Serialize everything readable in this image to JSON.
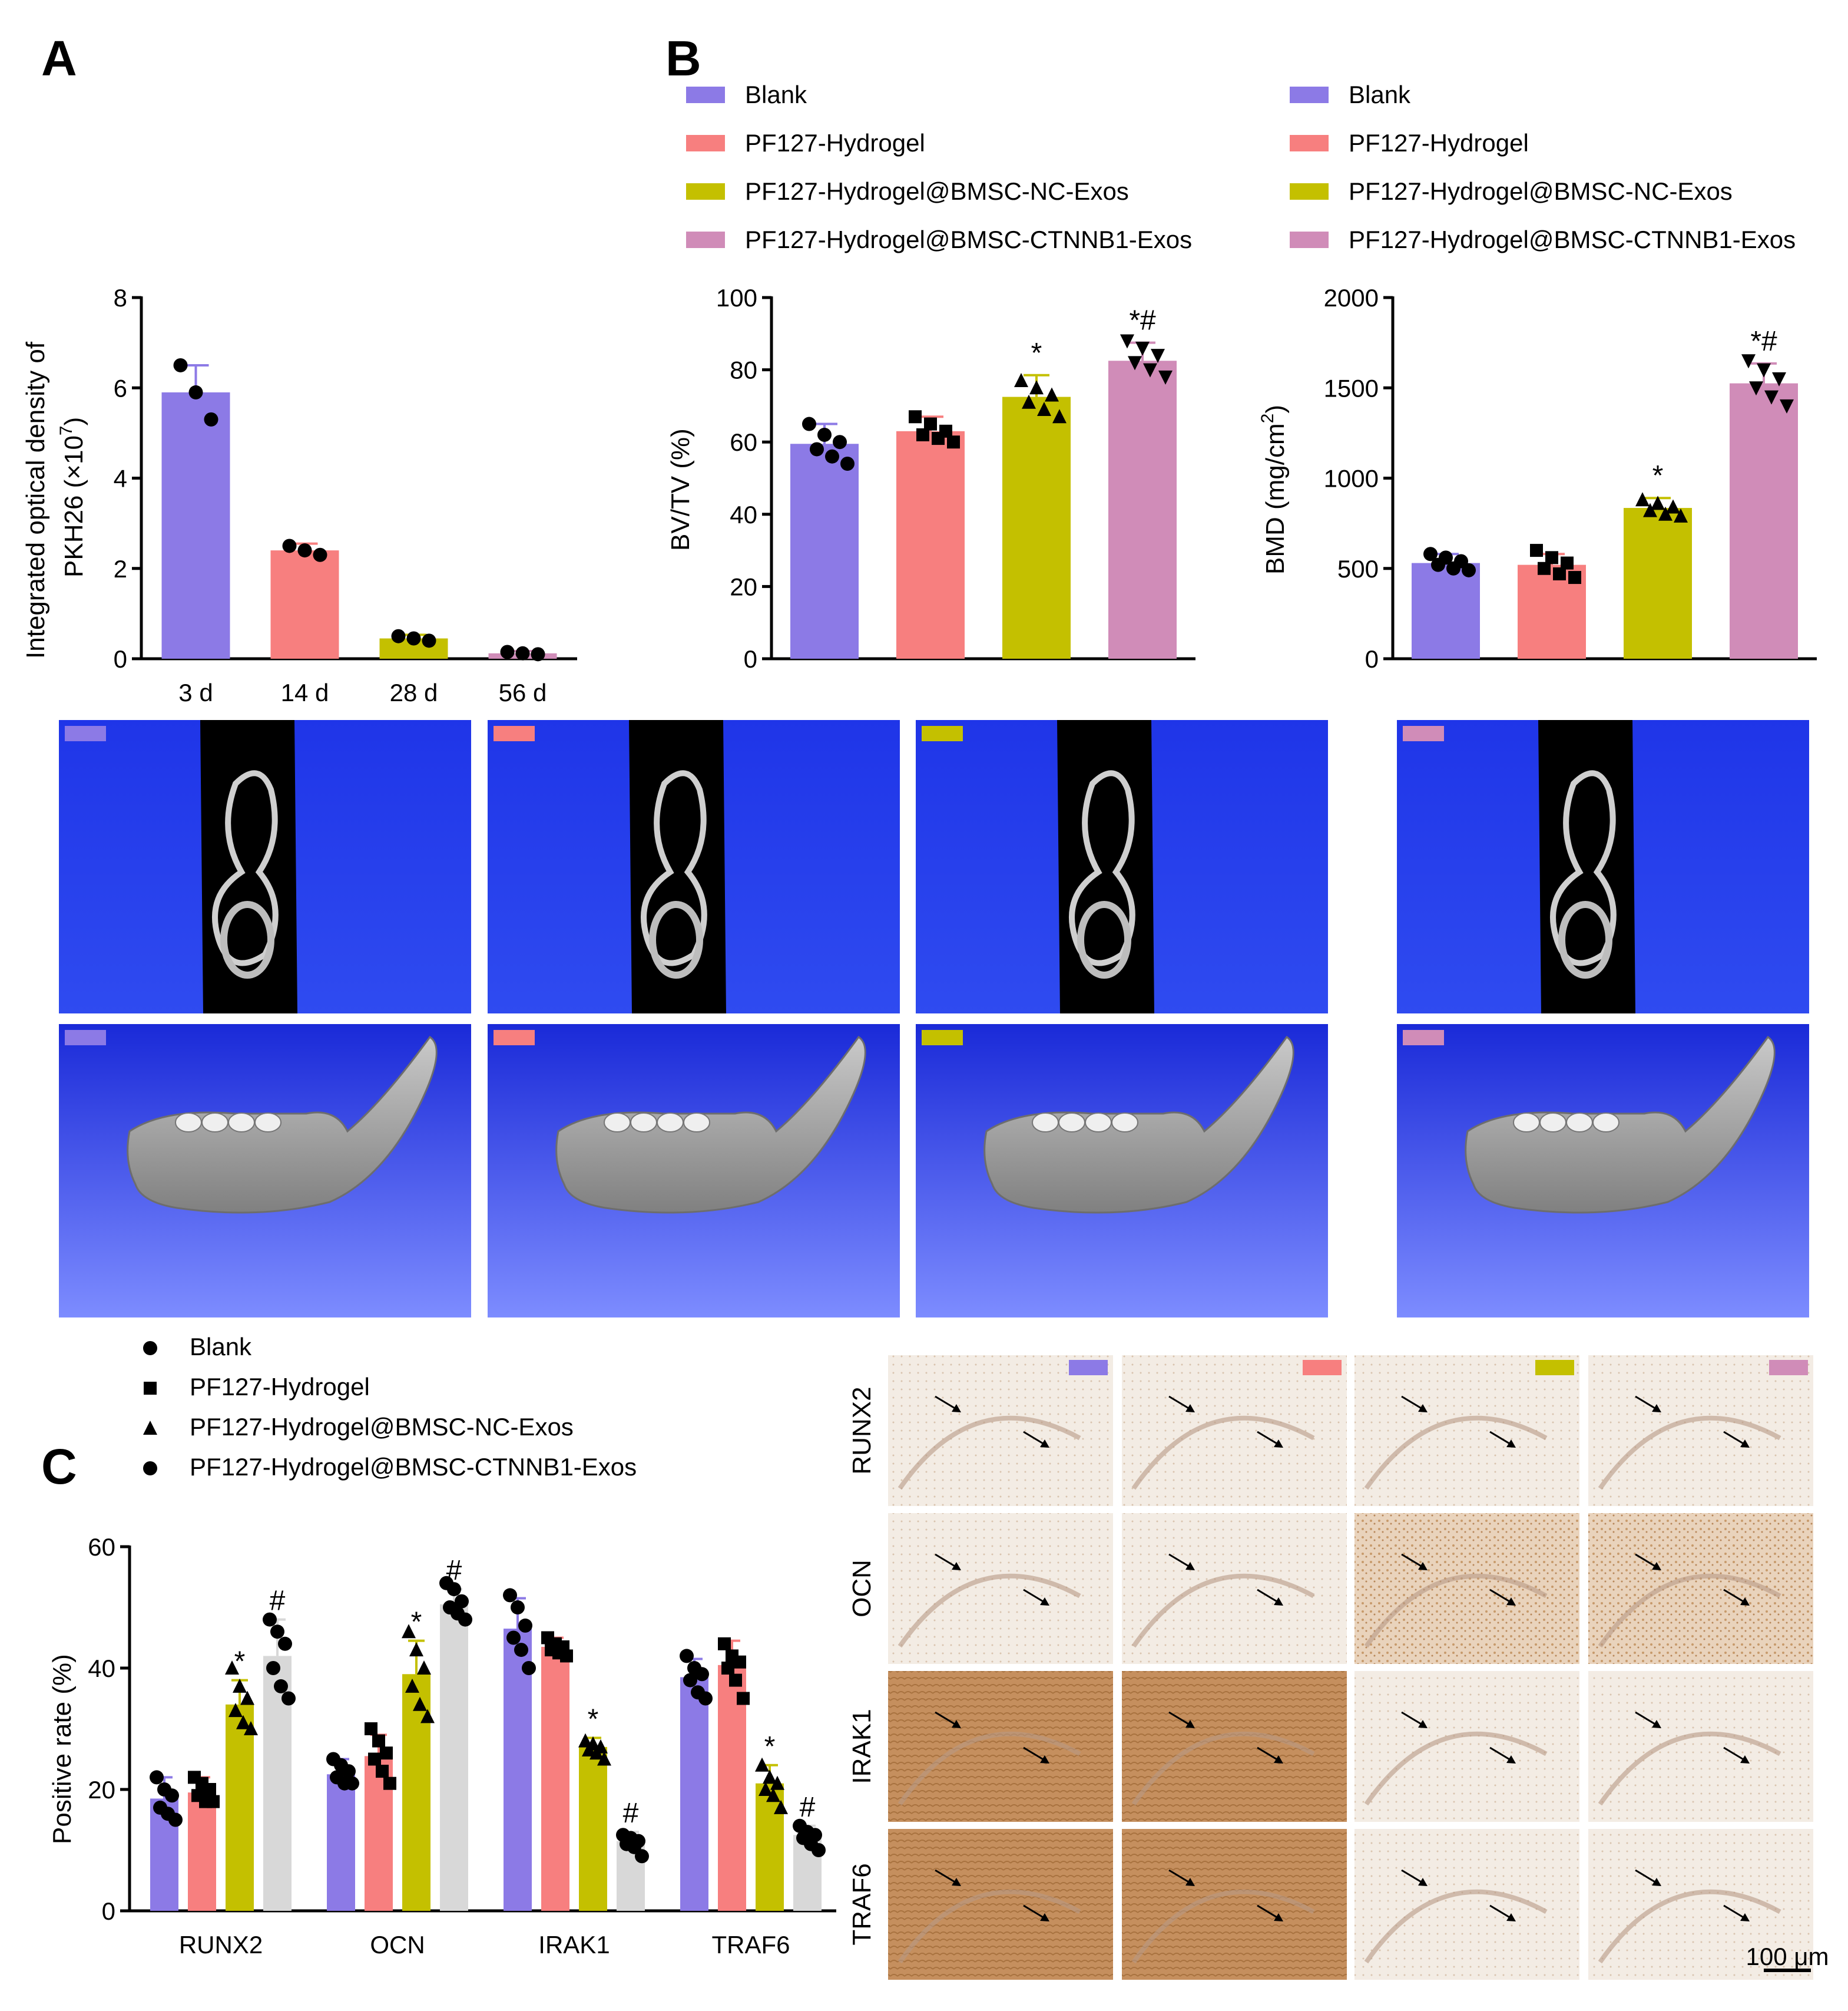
{
  "panels": {
    "a": "A",
    "b": "B",
    "c": "C"
  },
  "colors": {
    "Blank": "#8c7ae6",
    "PF127-Hydrogel": "#f77f7f",
    "PF127-Hydrogel@BMSC-NC-Exos": "#c4c000",
    "PF127-Hydrogel@BMSC-CTNNB1-Exos": "#d08cb8",
    "grey_bar": "#d8d8d8",
    "ct_background": "#1a2fe0",
    "ihc_stain": "#c79a6b"
  },
  "legend_groups": [
    "Blank",
    "PF127-Hydrogel",
    "PF127-Hydrogel@BMSC-NC-Exos",
    "PF127-Hydrogel@BMSC-CTNNB1-Exos"
  ],
  "ihc": {
    "markers": [
      "RUNX2",
      "OCN",
      "IRAK1",
      "TRAF6"
    ],
    "scale_bar": "100 μm"
  },
  "chart_data": [
    {
      "id": "A",
      "type": "bar",
      "categories": [
        "3 d",
        "14 d",
        "28 d",
        "56 d"
      ],
      "values": [
        5.9,
        2.4,
        0.45,
        0.12
      ],
      "errors": [
        0.6,
        0.15,
        0.08,
        0.05
      ],
      "points": [
        [
          6.5,
          5.9,
          5.3
        ],
        [
          2.5,
          2.4,
          2.3
        ],
        [
          0.5,
          0.45,
          0.4
        ],
        [
          0.15,
          0.12,
          0.1
        ]
      ],
      "ylabel_line1": "Integrated optical density of",
      "ylabel_line2": "PKH26 (×10",
      "ylabel_sup": "7",
      "ylabel_end": ")",
      "ylim": [
        0,
        8
      ],
      "yticks": [
        0,
        2,
        4,
        6,
        8
      ],
      "bar_colors": [
        "#8c7ae6",
        "#f77f7f",
        "#c4c000",
        "#d08cb8"
      ]
    },
    {
      "id": "B1",
      "type": "bar",
      "categories": [
        "Blank",
        "PF127-Hydrogel",
        "PF127-Hydrogel@BMSC-NC-Exos",
        "PF127-Hydrogel@BMSC-CTNNB1-Exos"
      ],
      "values": [
        59.5,
        63,
        72.5,
        82.5
      ],
      "errors": [
        5.5,
        4,
        6,
        5
      ],
      "points": [
        [
          65,
          62,
          60,
          58,
          56,
          54
        ],
        [
          67,
          65,
          63,
          62,
          61,
          60
        ],
        [
          77,
          75,
          73,
          71,
          69,
          67
        ],
        [
          88,
          86,
          84,
          82,
          80,
          78
        ]
      ],
      "annotations": [
        "",
        "",
        "*",
        "*#"
      ],
      "ylabel": "BV/TV (%)",
      "ylim": [
        0,
        100
      ],
      "yticks": [
        0,
        20,
        40,
        60,
        80,
        100
      ],
      "bar_colors": [
        "#8c7ae6",
        "#f77f7f",
        "#c4c000",
        "#d08cb8"
      ]
    },
    {
      "id": "B2",
      "type": "bar",
      "categories": [
        "Blank",
        "PF127-Hydrogel",
        "PF127-Hydrogel@BMSC-NC-Exos",
        "PF127-Hydrogel@BMSC-CTNNB1-Exos"
      ],
      "values": [
        530,
        520,
        835,
        1525
      ],
      "errors": [
        50,
        60,
        55,
        110
      ],
      "points": [
        [
          580,
          560,
          540,
          520,
          500,
          490
        ],
        [
          600,
          560,
          530,
          500,
          470,
          450
        ],
        [
          880,
          860,
          840,
          820,
          800,
          790
        ],
        [
          1650,
          1600,
          1550,
          1500,
          1450,
          1400
        ]
      ],
      "annotations": [
        "",
        "",
        "*",
        "*#"
      ],
      "ylabel_main": "BMD (mg/cm",
      "ylabel_sup": "2",
      "ylabel_end": ")",
      "ylim": [
        0,
        2000
      ],
      "yticks": [
        0,
        500,
        1000,
        1500,
        2000
      ],
      "bar_colors": [
        "#8c7ae6",
        "#f77f7f",
        "#c4c000",
        "#d08cb8"
      ]
    },
    {
      "id": "C",
      "type": "bar",
      "categories": [
        "RUNX2",
        "OCN",
        "IRAK1",
        "TRAF6"
      ],
      "series": [
        {
          "name": "Blank",
          "values": [
            18.5,
            22.5,
            46.5,
            38.5
          ],
          "errors": [
            3.5,
            2.5,
            5,
            3
          ]
        },
        {
          "name": "PF127-Hydrogel",
          "values": [
            19.5,
            25.5,
            43.5,
            40.5
          ],
          "errors": [
            2.5,
            3.5,
            1.5,
            4
          ]
        },
        {
          "name": "PF127-Hydrogel@BMSC-NC-Exos",
          "values": [
            34,
            39,
            27,
            21
          ],
          "errors": [
            4,
            5.5,
            1.5,
            3
          ]
        },
        {
          "name": "PF127-Hydrogel@BMSC-CTNNB1-Exos",
          "values": [
            42,
            50.5,
            11.5,
            12.5
          ],
          "errors": [
            6,
            2.5,
            1.5,
            1.5
          ]
        }
      ],
      "points": [
        [
          [
            22,
            20,
            19,
            17,
            16,
            15
          ],
          [
            22,
            21,
            20,
            19,
            18,
            18
          ],
          [
            40,
            37,
            35,
            33,
            31,
            30
          ],
          [
            48,
            46,
            44,
            40,
            37,
            35
          ]
        ],
        [
          [
            25,
            24,
            23,
            22,
            21,
            21
          ],
          [
            30,
            28,
            26,
            25,
            23,
            21
          ],
          [
            46,
            43,
            40,
            37,
            34,
            32
          ],
          [
            54,
            53,
            51,
            50,
            49,
            48
          ]
        ],
        [
          [
            52,
            50,
            47,
            45,
            43,
            40
          ],
          [
            45,
            44,
            43.5,
            43,
            42.5,
            42
          ],
          [
            28,
            27.5,
            27,
            26.5,
            26,
            25
          ],
          [
            12.5,
            12,
            11.5,
            11,
            10.5,
            9
          ]
        ],
        [
          [
            42,
            40,
            39,
            38,
            36,
            35
          ],
          [
            44,
            42,
            41,
            40,
            38,
            35
          ],
          [
            24,
            22,
            21,
            20,
            19,
            17
          ],
          [
            14,
            13,
            12.5,
            12,
            11,
            10
          ]
        ]
      ],
      "annotations": [
        [
          "",
          "",
          "*",
          "#"
        ],
        [
          "",
          "",
          "*",
          "#"
        ],
        [
          "",
          "",
          "*",
          "#"
        ],
        [
          "",
          "",
          "*",
          "#"
        ]
      ],
      "ylabel": "Positive rate (%)",
      "ylim": [
        0,
        60
      ],
      "yticks": [
        0,
        20,
        40,
        60
      ],
      "bar_colors": [
        "#8c7ae6",
        "#f77f7f",
        "#c4c000",
        "#d8d8d8"
      ]
    }
  ]
}
